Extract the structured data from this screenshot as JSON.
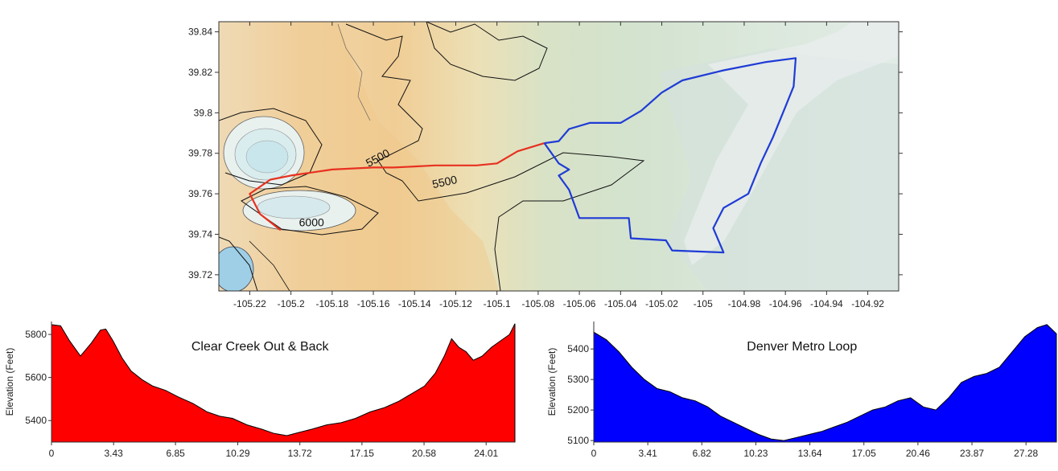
{
  "chart_data": [
    {
      "type": "map",
      "name": "map",
      "xlim": [
        -105.235,
        -104.905
      ],
      "ylim": [
        39.712,
        39.845
      ],
      "xticks": [
        "-105.22",
        "-105.2",
        "-105.18",
        "-105.16",
        "-105.14",
        "-105.12",
        "-105.1",
        "-105.08",
        "-105.06",
        "-105.04",
        "-105.02",
        "-105",
        "-104.98",
        "-104.96",
        "-104.94",
        "-104.92"
      ],
      "yticks": [
        "39.72",
        "39.74",
        "39.76",
        "39.78",
        "39.8",
        "39.82",
        "39.84"
      ],
      "contour_labels": [
        {
          "text": "5500",
          "lon": -105.157,
          "lat": 39.776
        },
        {
          "text": "5500",
          "lon": -105.125,
          "lat": 39.764
        },
        {
          "text": "6000",
          "lon": -105.19,
          "lat": 39.744
        }
      ],
      "routes": [
        {
          "route": "Clear Creek Out & Back",
          "color": "#e83020",
          "points": [
            [
              -105.205,
              39.742
            ],
            [
              -105.215,
              39.75
            ],
            [
              -105.22,
              39.76
            ],
            [
              -105.21,
              39.767
            ],
            [
              -105.2,
              39.769
            ],
            [
              -105.18,
              39.772
            ],
            [
              -105.16,
              39.773
            ],
            [
              -105.15,
              39.773
            ],
            [
              -105.13,
              39.774
            ],
            [
              -105.12,
              39.774
            ],
            [
              -105.11,
              39.774
            ],
            [
              -105.1,
              39.775
            ],
            [
              -105.09,
              39.781
            ],
            [
              -105.077,
              39.785
            ]
          ]
        },
        {
          "route": "Denver Metro Loop",
          "color": "#1f3bd6",
          "points": [
            [
              -105.077,
              39.785
            ],
            [
              -105.07,
              39.786
            ],
            [
              -105.065,
              39.792
            ],
            [
              -105.055,
              39.795
            ],
            [
              -105.04,
              39.795
            ],
            [
              -105.03,
              39.801
            ],
            [
              -105.02,
              39.81
            ],
            [
              -105.01,
              39.816
            ],
            [
              -104.99,
              39.821
            ],
            [
              -104.97,
              39.825
            ],
            [
              -104.955,
              39.827
            ],
            [
              -104.956,
              39.813
            ],
            [
              -104.96,
              39.803
            ],
            [
              -104.966,
              39.788
            ],
            [
              -104.972,
              39.775
            ],
            [
              -104.978,
              39.76
            ],
            [
              -104.99,
              39.753
            ],
            [
              -104.995,
              39.743
            ],
            [
              -104.99,
              39.731
            ],
            [
              -105.015,
              39.732
            ],
            [
              -105.018,
              39.737
            ],
            [
              -105.035,
              39.738
            ],
            [
              -105.036,
              39.748
            ],
            [
              -105.06,
              39.748
            ],
            [
              -105.065,
              39.762
            ],
            [
              -105.07,
              39.769
            ],
            [
              -105.065,
              39.772
            ],
            [
              -105.07,
              39.775
            ],
            [
              -105.077,
              39.785
            ]
          ]
        }
      ]
    },
    {
      "type": "area",
      "name": "clear-creek",
      "title": "Clear Creek Out & Back",
      "ylabel": "Elevation (Feet)",
      "color": "#ff0000",
      "xlim": [
        0,
        25.6
      ],
      "ylim": [
        5300,
        5860
      ],
      "xticks": [
        0,
        3.43,
        6.85,
        10.29,
        13.72,
        17.15,
        20.58,
        24.01
      ],
      "yticks": [
        5400,
        5600,
        5800
      ],
      "x": [
        0,
        0.5,
        1.0,
        1.6,
        2.2,
        2.7,
        3.0,
        3.4,
        3.9,
        4.4,
        5.0,
        5.6,
        6.3,
        7.0,
        7.8,
        8.6,
        9.3,
        10.0,
        10.8,
        11.6,
        12.3,
        13.0,
        13.7,
        14.4,
        15.2,
        16.0,
        16.8,
        17.6,
        18.4,
        19.2,
        20.0,
        20.6,
        21.2,
        21.7,
        22.1,
        22.5,
        22.9,
        23.3,
        23.8,
        24.3,
        24.8,
        25.3,
        25.6
      ],
      "values": [
        5845,
        5840,
        5770,
        5700,
        5760,
        5820,
        5825,
        5770,
        5690,
        5630,
        5590,
        5560,
        5540,
        5510,
        5480,
        5440,
        5420,
        5410,
        5380,
        5360,
        5340,
        5330,
        5345,
        5360,
        5380,
        5390,
        5410,
        5440,
        5460,
        5490,
        5530,
        5560,
        5620,
        5700,
        5780,
        5740,
        5720,
        5680,
        5700,
        5740,
        5770,
        5800,
        5850
      ]
    },
    {
      "type": "area",
      "name": "denver-metro",
      "title": "Denver Metro Loop",
      "ylabel": "Elevation (Feet)",
      "color": "#0000ff",
      "xlim": [
        0,
        29.2
      ],
      "ylim": [
        5095,
        5490
      ],
      "xticks": [
        0,
        3.41,
        6.82,
        10.23,
        13.64,
        17.05,
        20.46,
        23.87,
        27.28
      ],
      "yticks": [
        5100,
        5200,
        5300,
        5400
      ],
      "x": [
        0,
        0.8,
        1.6,
        2.4,
        3.2,
        4.0,
        4.8,
        5.6,
        6.4,
        7.2,
        8.0,
        8.8,
        9.6,
        10.4,
        11.2,
        12.0,
        12.8,
        13.6,
        14.4,
        15.2,
        16.0,
        16.8,
        17.6,
        18.4,
        19.2,
        20.0,
        20.8,
        21.6,
        22.4,
        23.2,
        24.0,
        24.8,
        25.6,
        26.4,
        27.2,
        28.0,
        28.6,
        29.2
      ],
      "values": [
        5455,
        5430,
        5390,
        5340,
        5300,
        5270,
        5260,
        5240,
        5230,
        5210,
        5180,
        5160,
        5140,
        5120,
        5105,
        5100,
        5110,
        5120,
        5130,
        5145,
        5160,
        5180,
        5200,
        5210,
        5230,
        5240,
        5210,
        5200,
        5240,
        5290,
        5310,
        5320,
        5340,
        5390,
        5440,
        5470,
        5480,
        5450
      ]
    }
  ]
}
